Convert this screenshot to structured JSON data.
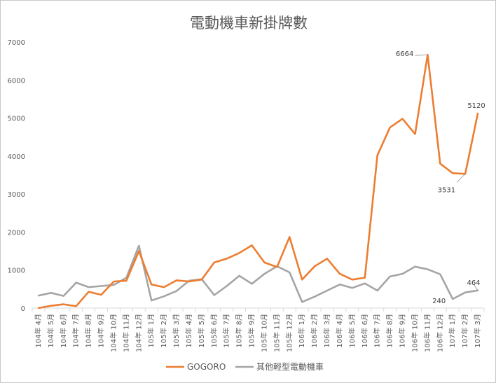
{
  "chart_data": {
    "type": "line",
    "title": "電動機車新掛牌數",
    "xlabel": "",
    "ylabel": "",
    "ylim": [
      0,
      7000
    ],
    "yticks": [
      0,
      1000,
      2000,
      3000,
      4000,
      5000,
      6000,
      7000
    ],
    "grid": false,
    "legend_position": "bottom",
    "categories": [
      "104年 4月",
      "104年 5月",
      "104年 6月",
      "104年 7月",
      "104年 8月",
      "104年 9月",
      "104年 10月",
      "104年 11月",
      "104年 12月",
      "105年 1月",
      "105年 2月",
      "105年 3月",
      "105年 4月",
      "105年 5月",
      "105年 6月",
      "105年 7月",
      "105年 8月",
      "105年 9月",
      "105年 10月",
      "105年 11月",
      "105年 12月",
      "106年 1月",
      "106年 2月",
      "106年 3月",
      "106年 4月",
      "106年 5月",
      "106年 6月",
      "106年 7月",
      "106年 8月",
      "106年 9月",
      "106年 10月",
      "106年 11月",
      "106年 12月",
      "107年 1月",
      "107年 2月",
      "107年 3月"
    ],
    "series": [
      {
        "name": "GOGORO",
        "color": "#ed7d31",
        "values": [
          0,
          60,
          100,
          50,
          430,
          350,
          700,
          720,
          1500,
          620,
          550,
          730,
          700,
          750,
          1200,
          1300,
          1450,
          1650,
          1200,
          1080,
          1870,
          750,
          1100,
          1300,
          900,
          750,
          800,
          4020,
          4750,
          4980,
          4580,
          6664,
          3800,
          3550,
          3531,
          5120
        ]
      },
      {
        "name": "其他輕型電動機車",
        "color": "#a5a5a5",
        "values": [
          330,
          400,
          320,
          670,
          550,
          580,
          610,
          800,
          1640,
          200,
          310,
          450,
          720,
          760,
          340,
          580,
          850,
          640,
          900,
          1100,
          940,
          160,
          300,
          460,
          620,
          530,
          650,
          460,
          830,
          900,
          1090,
          1020,
          890,
          240,
          410,
          464
        ]
      }
    ],
    "data_labels": [
      {
        "series": 0,
        "index": 31,
        "text": "6664"
      },
      {
        "series": 0,
        "index": 34,
        "text": "3531"
      },
      {
        "series": 0,
        "index": 35,
        "text": "5120"
      },
      {
        "series": 1,
        "index": 33,
        "text": "240"
      },
      {
        "series": 1,
        "index": 35,
        "text": "464"
      }
    ]
  }
}
